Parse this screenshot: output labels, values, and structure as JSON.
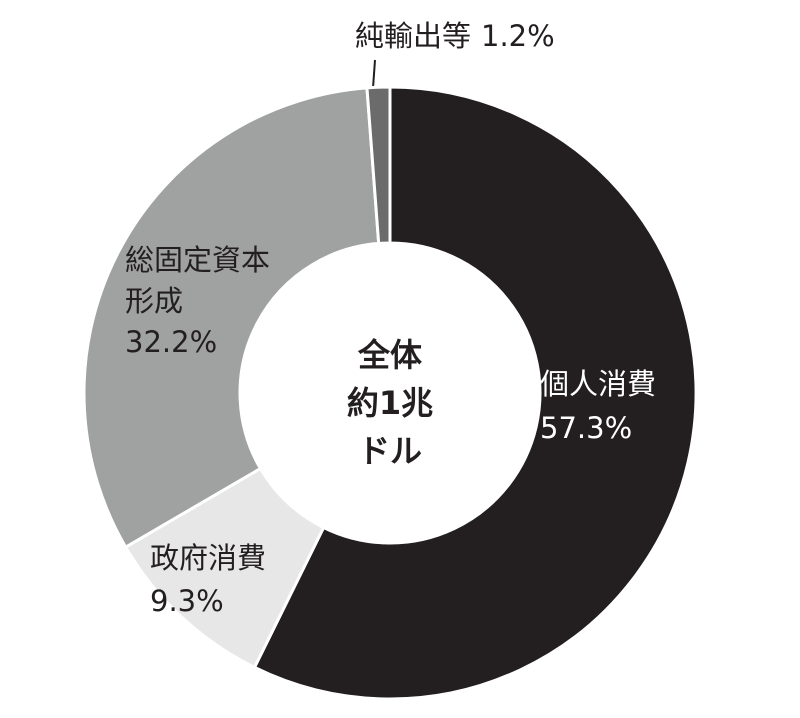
{
  "chart_data": {
    "type": "donut",
    "center_label": "全体\n約1兆\nドル",
    "categories": [
      "個人消費",
      "政府消費",
      "総固定資本\n形成",
      "純輸出等"
    ],
    "values": [
      57.3,
      9.3,
      32.2,
      1.2
    ],
    "value_labels": [
      "57.3%",
      "9.3%",
      "32.2%",
      "1.2%"
    ],
    "colors": [
      "#231f20",
      "#e6e7e6",
      "#a0a1a1",
      "#6b6b6b"
    ]
  }
}
